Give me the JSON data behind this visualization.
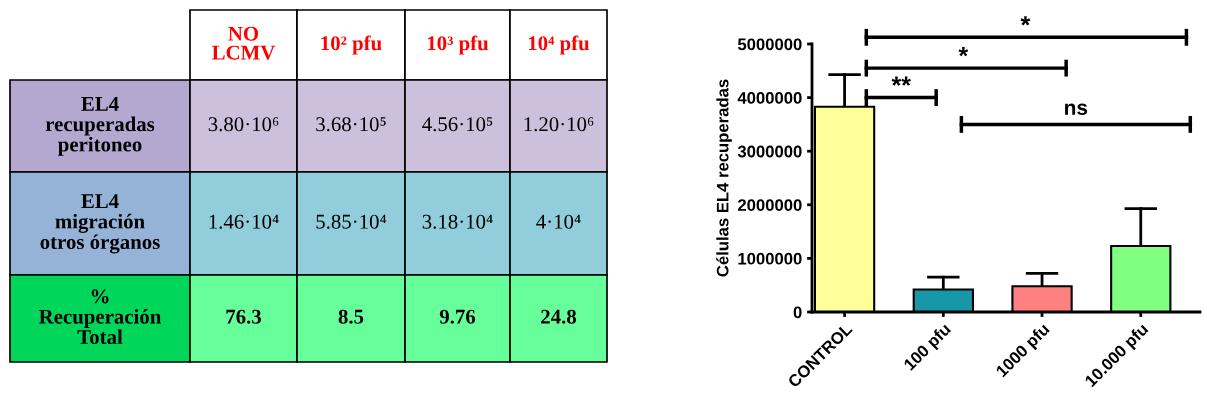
{
  "chart_data": [
    {
      "type": "other",
      "categories": [
        "NO\nLCMV",
        "10² pfu",
        "10³ pfu",
        "10⁴ pfu"
      ],
      "y_categories": [
        "EL4\nrecuperadas\nperitoneo",
        "EL4\nmigración\notros órganos",
        "%\nRecuperación\nTotal"
      ],
      "cell_labels": [
        [
          "3.80·10⁶",
          "3.68·10⁵",
          "4.56·10⁵",
          "1.20·10⁶"
        ],
        [
          "1.46·10⁴",
          "5.85·10⁴",
          "3.18·10⁴",
          "4·10⁴"
        ],
        [
          "76.3",
          "8.5",
          "9.76",
          "24.8"
        ]
      ]
    },
    {
      "type": "bar",
      "ylabel": "Células EL4 recuperadas",
      "categories": [
        "CONTROL",
        "100 pfu",
        "1000 pfu",
        "10.000 pfu"
      ],
      "values": [
        3830000,
        420000,
        480000,
        1230000
      ],
      "errors": [
        [
          3830000,
          4430000
        ],
        [
          420000,
          650000
        ],
        [
          480000,
          720000
        ],
        [
          1230000,
          1930000
        ]
      ],
      "colors": [
        "#ffff99",
        "#1797a8",
        "#ff8080",
        "#80ff80"
      ],
      "ylim": [
        0,
        5000000
      ],
      "yticks": [
        0,
        1000000,
        2000000,
        3000000,
        4000000,
        5000000
      ],
      "annotations": [
        "*",
        "*",
        "**",
        "ns"
      ],
      "grid": false
    }
  ]
}
